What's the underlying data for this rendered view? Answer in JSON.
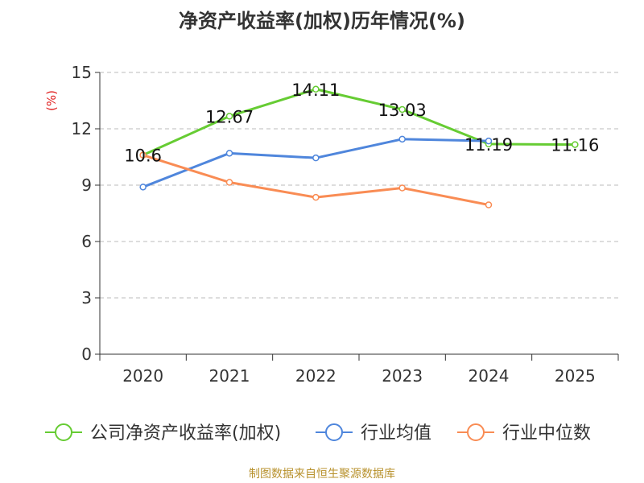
{
  "chart_data": {
    "type": "line",
    "title": "净资产收益率(加权)历年情况(%)",
    "ylabel": "(%)",
    "xlabel": "",
    "ylim": [
      0,
      15
    ],
    "yticks": [
      0,
      3,
      6,
      9,
      12,
      15
    ],
    "categories": [
      "2020",
      "2021",
      "2022",
      "2023",
      "2024",
      "2025"
    ],
    "grid": "horizontal dashed",
    "legend_position": "bottom",
    "series": [
      {
        "name": "公司净资产收益率(加权)",
        "color": "#66cc33",
        "values": [
          10.6,
          12.67,
          14.11,
          13.03,
          11.19,
          11.16
        ],
        "value_labels": [
          "10.6",
          "12.67",
          "14.11",
          "13.03",
          "11.19",
          "11.16"
        ]
      },
      {
        "name": "行业均值",
        "color": "#4f86dc",
        "values": [
          8.9,
          10.7,
          10.45,
          11.45,
          11.35,
          null
        ]
      },
      {
        "name": "行业中位数",
        "color": "#f98c54",
        "values": [
          10.6,
          9.15,
          8.35,
          8.85,
          7.95,
          null
        ]
      }
    ]
  },
  "source_text": "制图数据来自恒生聚源数据库"
}
